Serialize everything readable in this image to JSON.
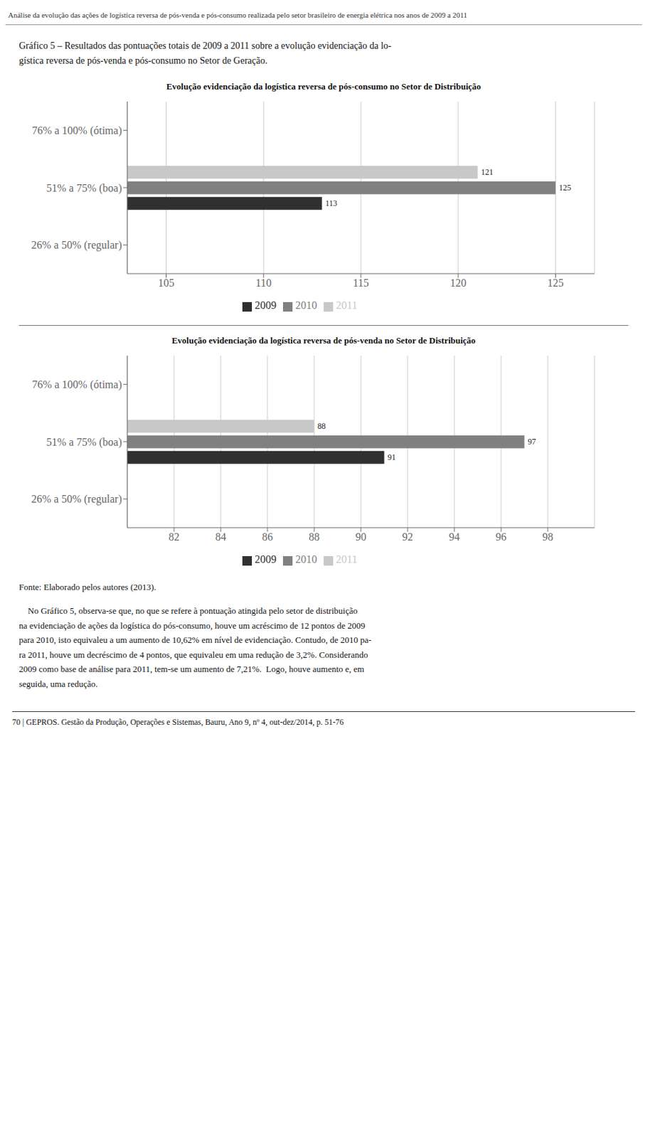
{
  "header": "Análise da evolução das ações de logística reversa de pós-venda e pós-consumo realizada pelo setor brasileiro de energia elétrica nos anos de 2009 a 2011",
  "caption": "Gráfico 5 – Resultados das pontuações totais de 2009 a 2011 sobre a evolução evidenciação da lo-\ngística reversa de pós-venda e pós-consumo no Setor de Geração.",
  "source": "Fonte: Elaborado pelos autores (2013).",
  "body": "    No Gráfico 5, observa-se que, no que se refere à pontuação atingida pelo setor de distribuição\nna evidenciação de ações da logística do pós-consumo, houve um acréscimo de 12 pontos de 2009\npara 2010, isto equivaleu a um aumento de 10,62% em nível de evidenciação. Contudo, de 2010 pa-\nra 2011, houve um decréscimo de 4 pontos, que equivaleu em uma redução de 3,2%. Considerando\n2009 como base de análise para 2011, tem-se um aumento de 7,21%.  Logo, houve aumento e, em\nseguida, uma redução.",
  "footer": "70    |    GEPROS. Gestão da Produção, Operações e Sistemas, Bauru, Ano 9, nº 4, out-dez/2014, p. 51-76",
  "chart_data": [
    {
      "type": "bar",
      "orientation": "horizontal",
      "title": "Evolução evidenciação da logística reversa de pós-consumo no Setor de Distribuição",
      "categories": [
        "76% a 100% (ótima)",
        "51% a 75% (boa)",
        "26% a 50% (regular)"
      ],
      "series": [
        {
          "name": "2011",
          "color": "#c8c8c8",
          "values": [
            null,
            121,
            null
          ]
        },
        {
          "name": "2010",
          "color": "#808080",
          "values": [
            null,
            125,
            null
          ]
        },
        {
          "name": "2009",
          "color": "#303030",
          "values": [
            null,
            113,
            null
          ]
        }
      ],
      "xlim": [
        103,
        127
      ],
      "xticks": [
        105,
        110,
        115,
        120,
        125
      ],
      "grid": true,
      "legend": "bottom",
      "data_labels": true
    },
    {
      "type": "bar",
      "orientation": "horizontal",
      "title": "Evolução evidenciação da logística reversa de pós-venda no Setor de Distribuição",
      "categories": [
        "76% a 100% (ótima)",
        "51% a 75% (boa)",
        "26% a 50% (regular)"
      ],
      "series": [
        {
          "name": "2011",
          "color": "#c8c8c8",
          "values": [
            null,
            88,
            null
          ]
        },
        {
          "name": "2010",
          "color": "#808080",
          "values": [
            null,
            97,
            null
          ]
        },
        {
          "name": "2009",
          "color": "#303030",
          "values": [
            null,
            91,
            null
          ]
        }
      ],
      "xlim": [
        80,
        100
      ],
      "xticks": [
        82,
        84,
        86,
        88,
        90,
        92,
        94,
        96,
        98
      ],
      "grid": true,
      "legend": "bottom",
      "data_labels": true
    }
  ]
}
